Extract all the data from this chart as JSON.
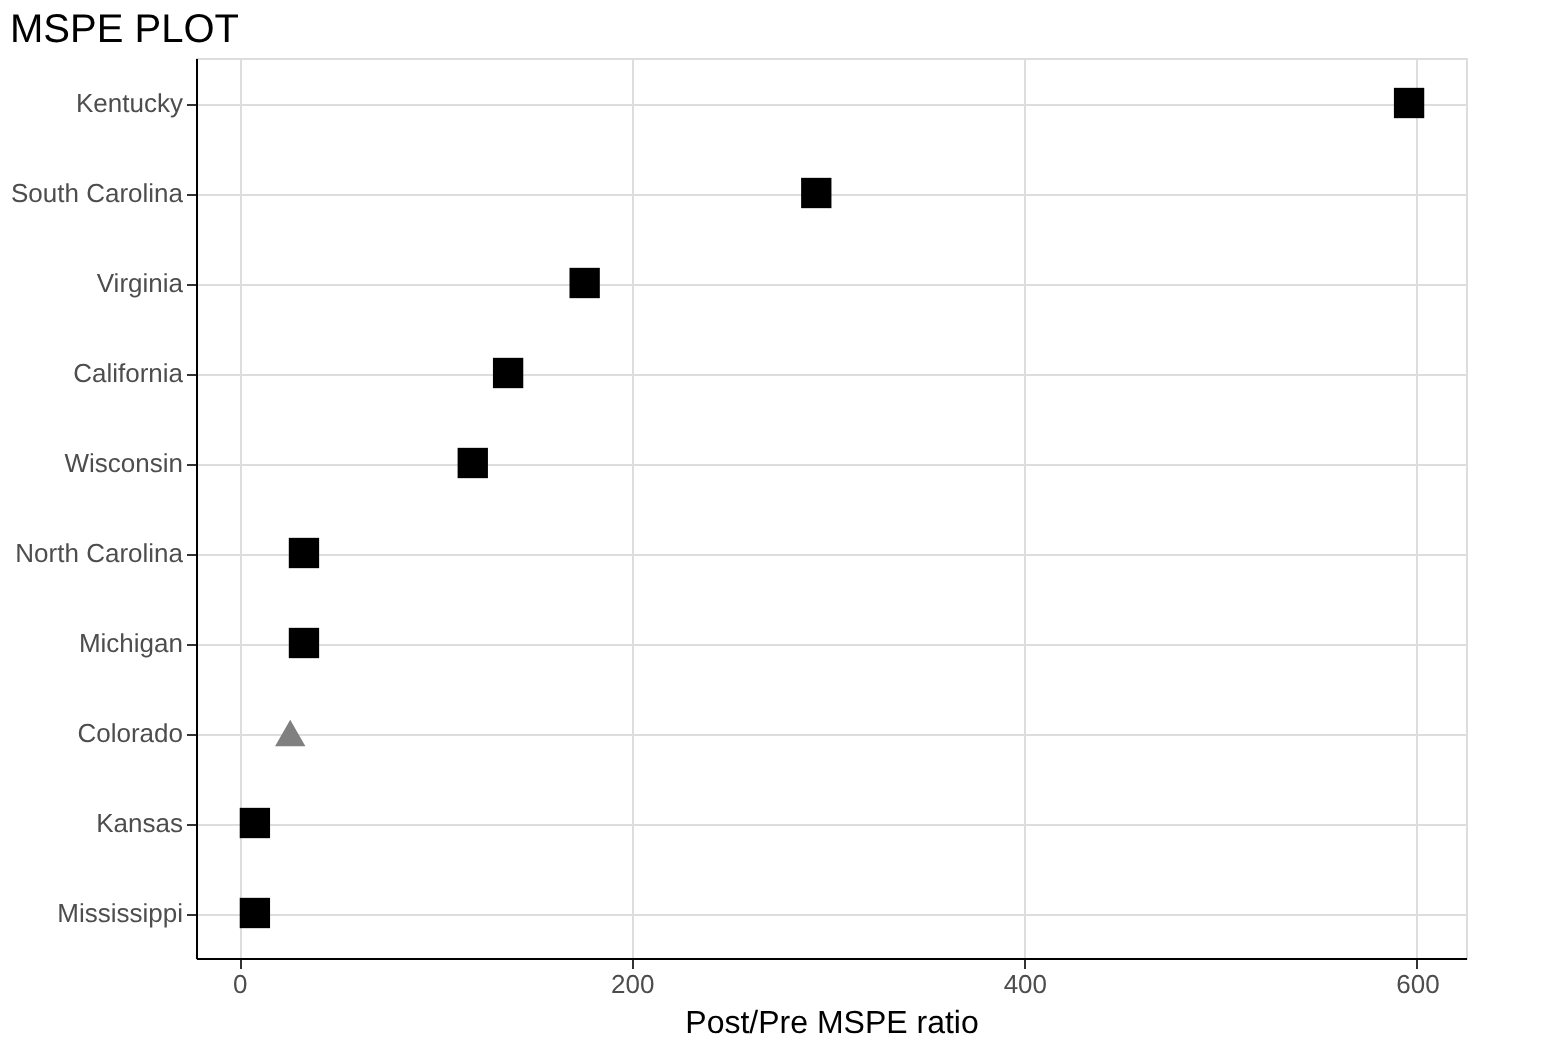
{
  "chart_data": {
    "type": "scatter",
    "title": "MSPE PLOT",
    "xlabel": "Post/Pre MSPE ratio",
    "orientation": "horizontal",
    "categories": [
      "Kentucky",
      "South Carolina",
      "Virginia",
      "California",
      "Wisconsin",
      "North Carolina",
      "Michigan",
      "Colorado",
      "Kansas",
      "Mississippi"
    ],
    "series": [
      {
        "color": "#000000",
        "marker": "square",
        "values": [
          596,
          294,
          176,
          137,
          119,
          33,
          33,
          null,
          8,
          8
        ]
      },
      {
        "color": "#808080",
        "marker": "triangle",
        "values": [
          null,
          null,
          null,
          null,
          null,
          null,
          null,
          26,
          null,
          null
        ]
      }
    ],
    "xlim": [
      -22,
      625
    ],
    "xticks": [
      0,
      200,
      400,
      600
    ],
    "grid": true
  }
}
